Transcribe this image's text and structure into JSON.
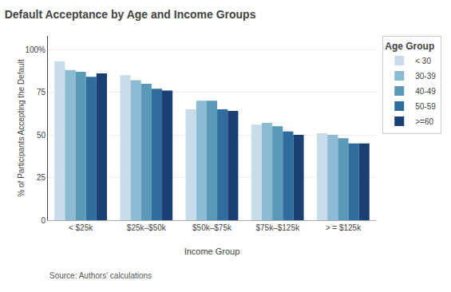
{
  "chart_data": {
    "type": "bar",
    "title": "Default Acceptance by Age and Income Groups",
    "xlabel": "Income Group",
    "ylabel": "% of Participants Accepting the Default",
    "annotations": [
      "Source: Authors' calculations"
    ],
    "legend_title": "Age Group",
    "categories": [
      "< $25k",
      "$25k–$50k",
      "$50k–$75k",
      "$75k–$125k",
      "> = $125k"
    ],
    "series": [
      {
        "name": "< 30",
        "color": "#c8dde9",
        "values": [
          93,
          85,
          65,
          56,
          51
        ]
      },
      {
        "name": "30-39",
        "color": "#8bbcd4",
        "values": [
          88,
          82,
          70,
          57,
          50
        ]
      },
      {
        "name": "40-49",
        "color": "#5a9ab8",
        "values": [
          87,
          80,
          70,
          55,
          48
        ]
      },
      {
        "name": "50-59",
        "color": "#2e6d9e",
        "values": [
          84,
          77,
          65,
          52,
          45
        ]
      },
      {
        "name": ">=60",
        "color": "#1a3f72",
        "values": [
          86,
          76,
          64,
          50,
          45
        ]
      }
    ],
    "ylim": [
      0,
      108
    ],
    "yticks": [
      0,
      25,
      50,
      75,
      {
        "value": 100,
        "label": "100%"
      }
    ],
    "grid": true,
    "legend": "upper right"
  }
}
